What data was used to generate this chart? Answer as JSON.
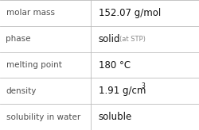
{
  "rows": [
    {
      "label": "molar mass",
      "value": "152.07 g/mol",
      "special": null,
      "superscript": false,
      "bold_value": false
    },
    {
      "label": "phase",
      "value": "solid",
      "special": "(at STP)",
      "superscript": false,
      "bold_value": false
    },
    {
      "label": "melting point",
      "value": "180 °C",
      "special": null,
      "superscript": false,
      "bold_value": false
    },
    {
      "label": "density",
      "value": "1.91 g/cm",
      "special": "3",
      "superscript": true,
      "bold_value": false
    },
    {
      "label": "solubility in water",
      "value": "soluble",
      "special": null,
      "superscript": false,
      "bold_value": false
    }
  ],
  "bg_color": "#ffffff",
  "line_color": "#bbbbbb",
  "label_color": "#505050",
  "value_color": "#111111",
  "special_color": "#888888",
  "col_split": 0.455,
  "font_size_label": 7.5,
  "font_size_value": 8.5,
  "font_size_special": 6.0,
  "font_size_super": 5.5
}
